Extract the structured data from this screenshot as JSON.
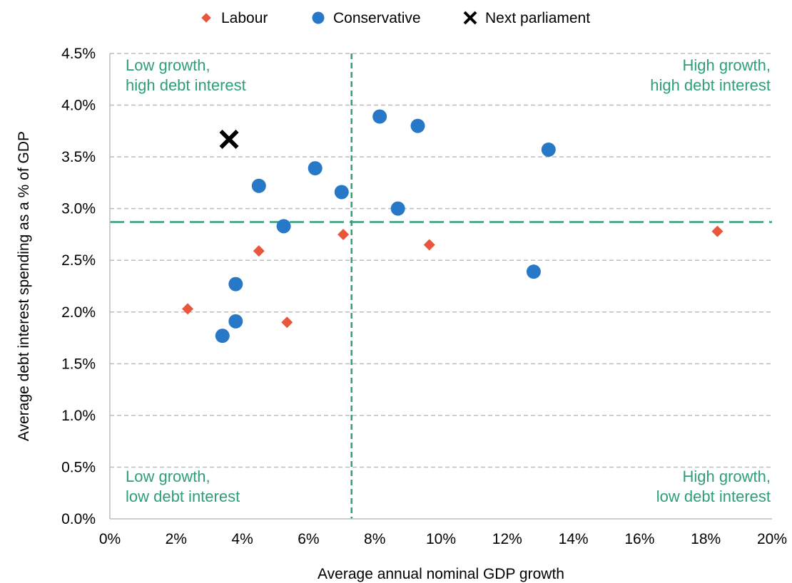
{
  "chart_data": {
    "type": "scatter",
    "xlabel": "Average annual nominal GDP growth",
    "ylabel": "Average debt interest spending as a % of GDP",
    "xlim": [
      0,
      20
    ],
    "ylim": [
      0,
      4.5
    ],
    "x_ticks": [
      "0%",
      "2%",
      "4%",
      "6%",
      "8%",
      "10%",
      "12%",
      "14%",
      "16%",
      "18%",
      "20%"
    ],
    "y_ticks": [
      "0.0%",
      "0.5%",
      "1.0%",
      "1.5%",
      "2.0%",
      "2.5%",
      "3.0%",
      "3.5%",
      "4.0%",
      "4.5%"
    ],
    "grid": "horizontal, dashed",
    "legend_position": "top",
    "reference_lines": {
      "x": 7.3,
      "y": 2.87
    },
    "colors": {
      "labour": "#E8563B",
      "conservative": "#2878C8",
      "next": "#000000",
      "reference": "#2E9E78"
    },
    "series": [
      {
        "name": "Labour",
        "marker": "diamond",
        "color": "#E8563B",
        "points": [
          [
            2.35,
            2.03
          ],
          [
            4.5,
            2.59
          ],
          [
            5.35,
            1.9
          ],
          [
            7.05,
            2.75
          ],
          [
            9.65,
            2.65
          ],
          [
            18.35,
            2.78
          ]
        ]
      },
      {
        "name": "Conservative",
        "marker": "circle",
        "color": "#2878C8",
        "points": [
          [
            3.4,
            1.77
          ],
          [
            3.8,
            1.91
          ],
          [
            3.8,
            2.27
          ],
          [
            4.5,
            3.22
          ],
          [
            5.25,
            2.83
          ],
          [
            6.2,
            3.39
          ],
          [
            7.0,
            3.16
          ],
          [
            8.15,
            3.89
          ],
          [
            8.7,
            3.0
          ],
          [
            9.3,
            3.8
          ],
          [
            12.8,
            2.39
          ],
          [
            13.25,
            3.57
          ]
        ]
      },
      {
        "name": "Next parliament",
        "marker": "cross",
        "color": "#000000",
        "points": [
          [
            3.6,
            3.67
          ]
        ]
      }
    ],
    "annotations": {
      "top_left": [
        "Low growth,",
        "high debt interest"
      ],
      "top_right": [
        "High growth,",
        "high debt interest"
      ],
      "bottom_left": [
        "Low growth,",
        "low debt interest"
      ],
      "bottom_right": [
        "High growth,",
        "low debt interest"
      ]
    }
  }
}
